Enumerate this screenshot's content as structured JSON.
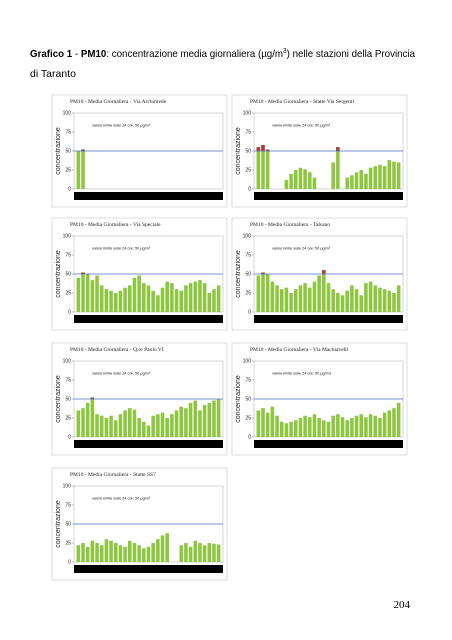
{
  "caption": {
    "label": "Grafico 1",
    "dash": "-",
    "pollutant": "PM10",
    "text": ": concentrazione media giornaliera (µg/m",
    "superscript": "3",
    "text_end": ") nelle stazioni della Provincia",
    "text_line2": "di Taranto"
  },
  "chart_data": [
    {
      "type": "bar",
      "title": "PM10 - Media Giornaliera - Via Archimede",
      "ylabel": "concentrazione",
      "annotation": "valore limite sulle 24 ore: 50 µg/m³",
      "limit": 50,
      "ylim": [
        0,
        100
      ],
      "yticks": [
        0,
        25,
        50,
        75,
        100
      ],
      "color": "#8dc63f",
      "limit_color": "#4a6fbf",
      "exceed_color": "#b03a3a",
      "values": [
        50,
        52,
        null,
        null,
        null,
        null,
        null,
        null,
        null,
        null,
        null,
        null,
        null,
        null,
        null,
        null,
        null,
        null,
        null,
        null,
        null,
        null,
        null,
        null,
        null,
        null,
        null,
        null,
        null,
        null,
        null
      ]
    },
    {
      "type": "bar",
      "title": "PM10 - Media Giornaliera - Statte Via Sergenti",
      "ylabel": "concentrazione",
      "annotation": "valore limite sulle 24 ore: 50 µg/m³",
      "limit": 50,
      "ylim": [
        0,
        100
      ],
      "yticks": [
        0,
        25,
        50,
        75,
        100
      ],
      "color": "#8dc63f",
      "limit_color": "#4a6fbf",
      "exceed_color": "#b03a3a",
      "values": [
        55,
        58,
        52,
        null,
        null,
        null,
        12,
        20,
        25,
        28,
        26,
        22,
        15,
        null,
        null,
        null,
        35,
        55,
        null,
        15,
        18,
        22,
        25,
        20,
        28,
        30,
        32,
        30,
        38,
        36,
        35
      ]
    },
    {
      "type": "bar",
      "title": "PM10 - Media Giornaliera - Via Speciale",
      "ylabel": "concentrazione",
      "annotation": "valore limite sulle 24 ore: 50 µg/m³",
      "limit": 50,
      "ylim": [
        0,
        100
      ],
      "yticks": [
        0,
        25,
        50,
        75,
        100
      ],
      "color": "#8dc63f",
      "limit_color": "#4a6fbf",
      "exceed_color": "#b03a3a",
      "values": [
        45,
        52,
        50,
        42,
        48,
        35,
        30,
        28,
        25,
        28,
        32,
        35,
        45,
        48,
        38,
        35,
        28,
        22,
        32,
        40,
        38,
        30,
        28,
        35,
        38,
        40,
        42,
        38,
        25,
        30,
        35
      ]
    },
    {
      "type": "bar",
      "title": "PM10 - Media Giornaliera - Talsano",
      "ylabel": "concentrazione",
      "annotation": "valore limite sulle 24 ore: 50 µg/m³",
      "limit": 50,
      "ylim": [
        0,
        100
      ],
      "yticks": [
        0,
        25,
        50,
        75,
        100
      ],
      "color": "#8dc63f",
      "limit_color": "#4a6fbf",
      "exceed_color": "#b03a3a",
      "values": [
        48,
        52,
        50,
        40,
        35,
        30,
        32,
        25,
        30,
        35,
        38,
        32,
        40,
        48,
        55,
        38,
        30,
        25,
        22,
        28,
        35,
        30,
        22,
        38,
        40,
        35,
        32,
        30,
        28,
        25,
        35
      ]
    },
    {
      "type": "bar",
      "title": "PM10 - Media Giornaliera - Q.re Paolo VI",
      "ylabel": "concentrazione",
      "annotation": "valore limite sulle 24 ore: 50 µg/m³",
      "limit": 50,
      "ylim": [
        0,
        100
      ],
      "yticks": [
        0,
        25,
        50,
        75,
        100
      ],
      "color": "#8dc63f",
      "limit_color": "#4a6fbf",
      "exceed_color": "#b03a3a",
      "values": [
        35,
        38,
        45,
        52,
        30,
        28,
        25,
        28,
        22,
        30,
        35,
        38,
        36,
        25,
        20,
        15,
        28,
        30,
        32,
        25,
        30,
        35,
        40,
        38,
        45,
        48,
        35,
        42,
        45,
        48,
        50
      ]
    },
    {
      "type": "bar",
      "title": "PM10 - Media Giornaliera - Via Machiavelli",
      "ylabel": "concentrazione",
      "annotation": "valore limite sulle 24 ore: 50 µg/m3",
      "limit": 50,
      "ylim": [
        0,
        100
      ],
      "yticks": [
        0,
        25,
        50,
        75,
        100
      ],
      "color": "#8dc63f",
      "limit_color": "#4a6fbf",
      "exceed_color": "#b03a3a",
      "values": [
        35,
        38,
        32,
        40,
        28,
        20,
        18,
        20,
        22,
        25,
        28,
        26,
        30,
        25,
        22,
        20,
        28,
        30,
        26,
        22,
        25,
        28,
        30,
        26,
        30,
        28,
        25,
        32,
        35,
        38,
        45
      ]
    },
    {
      "type": "bar",
      "title": "PM10 - Media Giornaliera - Statte SS7",
      "ylabel": "concentrazione",
      "annotation": "valore limite sulle 24 ore: 50 µg/m³",
      "limit": 50,
      "ylim": [
        0,
        100
      ],
      "yticks": [
        0,
        25,
        50,
        75,
        100
      ],
      "color": "#8dc63f",
      "limit_color": "#4a6fbf",
      "exceed_color": "#b03a3a",
      "values": [
        22,
        25,
        20,
        28,
        25,
        22,
        30,
        28,
        25,
        22,
        20,
        28,
        25,
        22,
        18,
        20,
        25,
        30,
        35,
        38,
        null,
        null,
        22,
        25,
        20,
        28,
        25,
        22,
        25,
        24,
        23
      ]
    }
  ],
  "page_number": "204"
}
